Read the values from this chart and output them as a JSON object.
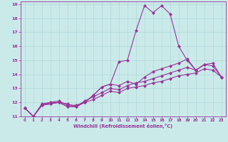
{
  "xlabel": "Windchill (Refroidissement éolien,°C)",
  "xlim": [
    -0.5,
    23.5
  ],
  "ylim": [
    11,
    19.2
  ],
  "yticks": [
    11,
    12,
    13,
    14,
    15,
    16,
    17,
    18,
    19
  ],
  "xticks": [
    0,
    1,
    2,
    3,
    4,
    5,
    6,
    7,
    8,
    9,
    10,
    11,
    12,
    13,
    14,
    15,
    16,
    17,
    18,
    19,
    20,
    21,
    22,
    23
  ],
  "bg_color": "#caeaea",
  "line_color": "#993399",
  "grid_color": "#b0d8d8",
  "lines": [
    {
      "x": [
        0,
        1,
        2,
        3,
        4,
        5,
        6,
        7,
        8,
        9,
        10,
        11,
        12,
        13,
        14,
        15,
        16,
        17,
        18,
        19,
        20,
        21
      ],
      "y": [
        11.6,
        11.0,
        11.8,
        11.9,
        12.0,
        11.7,
        11.7,
        12.0,
        12.5,
        13.1,
        13.3,
        14.9,
        15.0,
        17.1,
        18.9,
        18.4,
        18.9,
        18.3,
        16.0,
        15.0,
        14.3,
        14.7
      ]
    },
    {
      "x": [
        0,
        1,
        2,
        3,
        4,
        5,
        6,
        7,
        8,
        9,
        10,
        11,
        12,
        13,
        14,
        15,
        16,
        17,
        18,
        19,
        20,
        21,
        22,
        23
      ],
      "y": [
        11.6,
        11.0,
        11.8,
        11.9,
        12.0,
        11.7,
        11.7,
        12.0,
        12.5,
        13.1,
        13.3,
        13.2,
        13.5,
        13.3,
        13.8,
        14.2,
        14.4,
        14.6,
        14.8,
        15.1,
        14.3,
        14.7,
        14.8,
        13.8
      ]
    },
    {
      "x": [
        0,
        1,
        2,
        3,
        4,
        5,
        6,
        7,
        8,
        9,
        10,
        11,
        12,
        13,
        14,
        15,
        16,
        17,
        18,
        19,
        20,
        21,
        22,
        23
      ],
      "y": [
        11.6,
        11.0,
        11.9,
        12.0,
        12.0,
        11.9,
        11.7,
        12.1,
        12.4,
        12.7,
        13.0,
        12.9,
        13.2,
        13.4,
        13.5,
        13.7,
        13.9,
        14.1,
        14.3,
        14.5,
        14.3,
        14.7,
        14.6,
        13.8
      ]
    },
    {
      "x": [
        0,
        1,
        2,
        3,
        4,
        5,
        6,
        7,
        8,
        9,
        10,
        11,
        12,
        13,
        14,
        15,
        16,
        17,
        18,
        19,
        20,
        21,
        22,
        23
      ],
      "y": [
        11.6,
        11.0,
        11.8,
        12.0,
        12.1,
        11.8,
        11.8,
        12.0,
        12.2,
        12.5,
        12.8,
        12.7,
        13.0,
        13.1,
        13.2,
        13.4,
        13.5,
        13.7,
        13.9,
        14.0,
        14.1,
        14.4,
        14.3,
        13.8
      ]
    }
  ]
}
